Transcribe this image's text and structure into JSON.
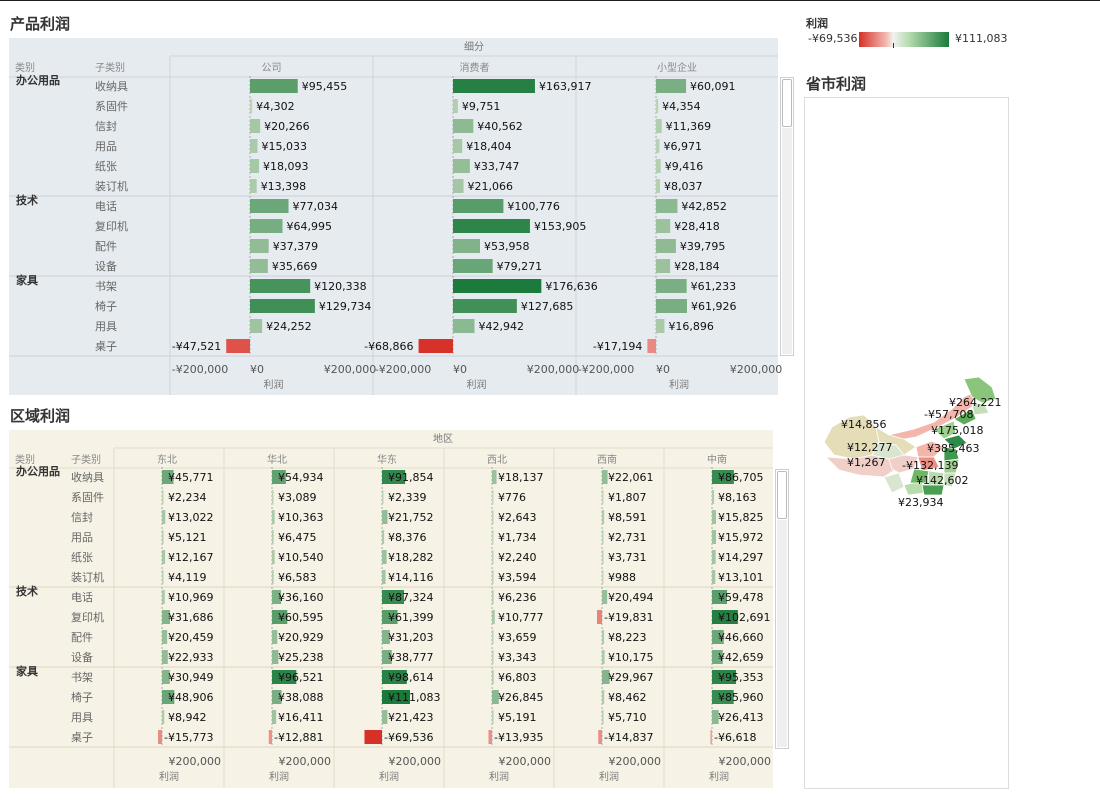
{
  "colors": {
    "positive": "#1a7a3a",
    "negative": "#d73027",
    "product_bg": "#e6ebef",
    "region_bg": "#f6f2e6"
  },
  "legend": {
    "title": "利润",
    "min_label": "-¥69,536",
    "max_label": "¥111,083"
  },
  "product_section": {
    "title": "产品利润",
    "header_group": "细分",
    "col_category": "类别",
    "col_subcategory": "子类别",
    "axis_label": "利润",
    "axis_ticks": [
      "-¥200,000",
      "¥0",
      "¥200,000"
    ]
  },
  "region_section": {
    "title": "区域利润",
    "header_group": "地区",
    "col_category": "类别",
    "col_subcategory": "子类别",
    "axis_label": "利润",
    "axis_tick": "¥200,000"
  },
  "map_section": {
    "title": "省市利润",
    "labels": [
      "¥264,221",
      "-¥57,708",
      "¥175,018",
      "¥14,856",
      "¥385,463",
      "¥12,277",
      "-¥132,139",
      "¥1,267",
      "¥142,602",
      "¥23,934"
    ]
  },
  "categories": [
    {
      "name": "办公用品",
      "subcategories": [
        "收纳具",
        "系固件",
        "信封",
        "用品",
        "纸张",
        "装订机"
      ]
    },
    {
      "name": "技术",
      "subcategories": [
        "电话",
        "复印机",
        "配件",
        "设备"
      ]
    },
    {
      "name": "家具",
      "subcategories": [
        "书架",
        "椅子",
        "用具",
        "桌子"
      ]
    }
  ],
  "chart_data": [
    {
      "type": "bar",
      "title": "产品利润",
      "xlabel": "利润",
      "xlim": [
        -200000,
        200000
      ],
      "categories": [
        "收纳具",
        "系固件",
        "信封",
        "用品",
        "纸张",
        "装订机",
        "电话",
        "复印机",
        "配件",
        "设备",
        "书架",
        "椅子",
        "用具",
        "桌子"
      ],
      "series": [
        {
          "name": "公司",
          "labels": [
            "¥95,455",
            "¥4,302",
            "¥20,266",
            "¥15,033",
            "¥18,093",
            "¥13,398",
            "¥77,034",
            "¥64,995",
            "¥37,379",
            "¥35,669",
            "¥120,338",
            "¥129,734",
            "¥24,252",
            "-¥47,521"
          ],
          "values": [
            95455,
            4302,
            20266,
            15033,
            18093,
            13398,
            77034,
            64995,
            37379,
            35669,
            120338,
            129734,
            24252,
            -47521
          ]
        },
        {
          "name": "消费者",
          "labels": [
            "¥163,917",
            "¥9,751",
            "¥40,562",
            "¥18,404",
            "¥33,747",
            "¥21,066",
            "¥100,776",
            "¥153,905",
            "¥53,958",
            "¥79,271",
            "¥176,636",
            "¥127,685",
            "¥42,942",
            "-¥68,866"
          ],
          "values": [
            163917,
            9751,
            40562,
            18404,
            33747,
            21066,
            100776,
            153905,
            53958,
            79271,
            176636,
            127685,
            42942,
            -68866
          ]
        },
        {
          "name": "小型企业",
          "labels": [
            "¥60,091",
            "¥4,354",
            "¥11,369",
            "¥6,971",
            "¥9,416",
            "¥8,037",
            "¥42,852",
            "¥28,418",
            "¥39,795",
            "¥28,184",
            "¥61,233",
            "¥61,926",
            "¥16,896",
            "-¥17,194"
          ],
          "values": [
            60091,
            4354,
            11369,
            6971,
            9416,
            8037,
            42852,
            28418,
            39795,
            28184,
            61233,
            61926,
            16896,
            -17194
          ]
        }
      ]
    },
    {
      "type": "bar",
      "title": "区域利润",
      "xlabel": "利润",
      "categories": [
        "收纳具",
        "系固件",
        "信封",
        "用品",
        "纸张",
        "装订机",
        "电话",
        "复印机",
        "配件",
        "设备",
        "书架",
        "椅子",
        "用具",
        "桌子"
      ],
      "series": [
        {
          "name": "东北",
          "labels": [
            "¥45,771",
            "¥2,234",
            "¥13,022",
            "¥5,121",
            "¥12,167",
            "¥4,119",
            "¥10,969",
            "¥31,686",
            "¥20,459",
            "¥22,933",
            "¥30,949",
            "¥48,906",
            "¥8,942",
            "-¥15,773"
          ],
          "values": [
            45771,
            2234,
            13022,
            5121,
            12167,
            4119,
            10969,
            31686,
            20459,
            22933,
            30949,
            48906,
            8942,
            -15773
          ]
        },
        {
          "name": "华北",
          "labels": [
            "¥54,934",
            "¥3,089",
            "¥10,363",
            "¥6,475",
            "¥10,540",
            "¥6,583",
            "¥36,160",
            "¥60,595",
            "¥20,929",
            "¥25,238",
            "¥96,521",
            "¥38,088",
            "¥16,411",
            "-¥12,881"
          ],
          "values": [
            54934,
            3089,
            10363,
            6475,
            10540,
            6583,
            36160,
            60595,
            20929,
            25238,
            96521,
            38088,
            16411,
            -12881
          ]
        },
        {
          "name": "华东",
          "labels": [
            "¥91,854",
            "¥2,339",
            "¥21,752",
            "¥8,376",
            "¥18,282",
            "¥14,116",
            "¥87,324",
            "¥61,399",
            "¥31,203",
            "¥38,777",
            "¥98,614",
            "¥111,083",
            "¥21,423",
            "-¥69,536"
          ],
          "values": [
            91854,
            2339,
            21752,
            8376,
            18282,
            14116,
            87324,
            61399,
            31203,
            38777,
            98614,
            111083,
            21423,
            -69536
          ]
        },
        {
          "name": "西北",
          "labels": [
            "¥18,137",
            "¥776",
            "¥2,643",
            "¥1,734",
            "¥2,240",
            "¥3,594",
            "¥6,236",
            "¥10,777",
            "¥3,659",
            "¥3,343",
            "¥6,803",
            "¥26,845",
            "¥5,191",
            "-¥13,935"
          ],
          "values": [
            18137,
            776,
            2643,
            1734,
            2240,
            3594,
            6236,
            10777,
            3659,
            3343,
            6803,
            26845,
            5191,
            -13935
          ]
        },
        {
          "name": "西南",
          "labels": [
            "¥22,061",
            "¥1,807",
            "¥8,591",
            "¥2,731",
            "¥3,731",
            "¥988",
            "¥20,494",
            "-¥19,831",
            "¥8,223",
            "¥10,175",
            "¥29,967",
            "¥8,462",
            "¥5,710",
            "-¥14,837"
          ],
          "values": [
            22061,
            1807,
            8591,
            2731,
            3731,
            988,
            20494,
            -19831,
            8223,
            10175,
            29967,
            8462,
            5710,
            -14837
          ]
        },
        {
          "name": "中南",
          "labels": [
            "¥86,705",
            "¥8,163",
            "¥15,825",
            "¥15,972",
            "¥14,297",
            "¥13,101",
            "¥59,478",
            "¥102,691",
            "¥46,660",
            "¥42,659",
            "¥95,353",
            "¥85,960",
            "¥26,413",
            "-¥6,618"
          ],
          "values": [
            86705,
            8163,
            15825,
            15972,
            14297,
            13101,
            59478,
            102691,
            46660,
            42659,
            95353,
            85960,
            26413,
            -6618
          ]
        }
      ]
    }
  ]
}
